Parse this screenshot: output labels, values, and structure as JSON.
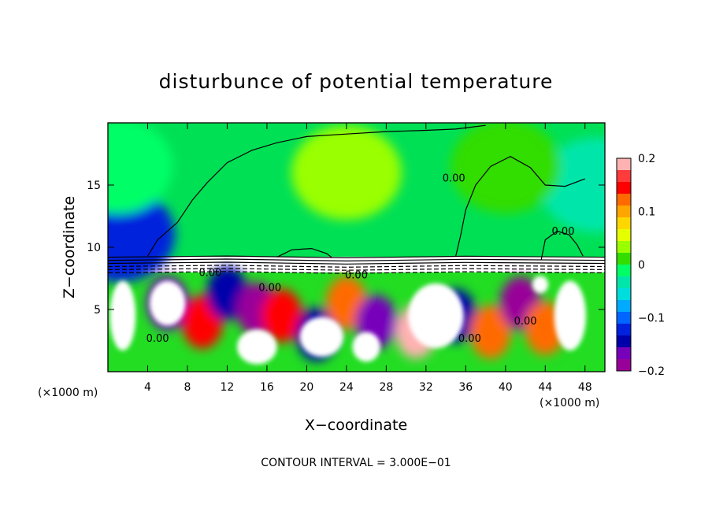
{
  "chart_data": {
    "type": "heatmap",
    "title": "disturbunce of potential temperature",
    "xlabel": "X−coordinate",
    "ylabel": "Z−coordinate",
    "x_unit": "(×1000 m)",
    "y_unit": "(×1000 m)",
    "xlim": [
      0,
      50
    ],
    "ylim": [
      0,
      20
    ],
    "x_ticks": [
      4,
      8,
      12,
      16,
      20,
      24,
      28,
      32,
      36,
      40,
      44,
      48
    ],
    "y_ticks": [
      5,
      10,
      15
    ],
    "footer": "CONTOUR INTERVAL = 3.000E−01",
    "colorbar": {
      "min": -0.2,
      "max": 0.2,
      "ticks": [
        0.2,
        0.1,
        0,
        -0.1,
        -0.2
      ],
      "tick_labels": [
        "0.2",
        "0.1",
        "0",
        "−0.1",
        "−0.2"
      ],
      "colors": [
        "#ffb2b2",
        "#ff3b3b",
        "#ff0000",
        "#ff6a00",
        "#ffa500",
        "#ffd700",
        "#e6ff00",
        "#9aff00",
        "#33dd00",
        "#00ff66",
        "#00e6aa",
        "#00dddd",
        "#00aaff",
        "#0066ff",
        "#0022dd",
        "#0000aa",
        "#7700bb",
        "#990099"
      ]
    },
    "contour_labels": [
      {
        "text": "0.00",
        "x": 34.8,
        "y": 15.3
      },
      {
        "text": "0.00",
        "x": 45.8,
        "y": 11.0
      },
      {
        "text": "0.00",
        "x": 10.3,
        "y": 7.7
      },
      {
        "text": "0.00",
        "x": 16.3,
        "y": 6.5
      },
      {
        "text": "0.00",
        "x": 25.0,
        "y": 7.5
      },
      {
        "text": "0.00",
        "x": 5.0,
        "y": 2.4
      },
      {
        "text": "0.00",
        "x": 36.4,
        "y": 2.4
      },
      {
        "text": "0.00",
        "x": 42.0,
        "y": 3.8
      }
    ],
    "fields": [
      {
        "x": 6,
        "y": 5.5,
        "value": -0.18
      },
      {
        "x": 9.5,
        "y": 4.0,
        "value": 0.15
      },
      {
        "x": 12,
        "y": 6.3,
        "value": -0.15
      },
      {
        "x": 15,
        "y": 5.0,
        "value": -0.2
      },
      {
        "x": 17.5,
        "y": 4.5,
        "value": 0.16
      },
      {
        "x": 21,
        "y": 3.0,
        "value": -0.15
      },
      {
        "x": 24,
        "y": 5.5,
        "value": 0.14
      },
      {
        "x": 27,
        "y": 4.0,
        "value": -0.18
      },
      {
        "x": 31,
        "y": 3.2,
        "value": 0.2
      },
      {
        "x": 35,
        "y": 4.5,
        "value": -0.16
      },
      {
        "x": 38.5,
        "y": 3.2,
        "value": 0.13
      },
      {
        "x": 41.5,
        "y": 5.5,
        "value": -0.2
      },
      {
        "x": 44,
        "y": 3.5,
        "value": 0.14
      },
      {
        "x": 1.2,
        "y": 11.0,
        "value": -0.12
      },
      {
        "x": 49,
        "y": 15.0,
        "value": -0.03
      },
      {
        "x": 1,
        "y": 16.5,
        "value": -0.02
      },
      {
        "x": 24,
        "y": 16.0,
        "value": 0.03
      },
      {
        "x": 40,
        "y": 16.5,
        "value": 0.01
      }
    ],
    "saturated_regions": [
      {
        "x": 6,
        "y": 5.5,
        "rx": 1.8,
        "ry": 1.8
      },
      {
        "x": 21.5,
        "y": 2.8,
        "rx": 2.2,
        "ry": 1.6
      },
      {
        "x": 15,
        "y": 2.0,
        "rx": 2.0,
        "ry": 1.4
      },
      {
        "x": 33,
        "y": 4.5,
        "rx": 2.8,
        "ry": 2.6
      },
      {
        "x": 46.5,
        "y": 4.5,
        "rx": 1.6,
        "ry": 2.8
      },
      {
        "x": 1.5,
        "y": 4.5,
        "rx": 1.3,
        "ry": 2.8
      },
      {
        "x": 26,
        "y": 2.0,
        "rx": 1.4,
        "ry": 1.2
      },
      {
        "x": 43.5,
        "y": 7.0,
        "rx": 0.8,
        "ry": 0.7
      }
    ]
  }
}
